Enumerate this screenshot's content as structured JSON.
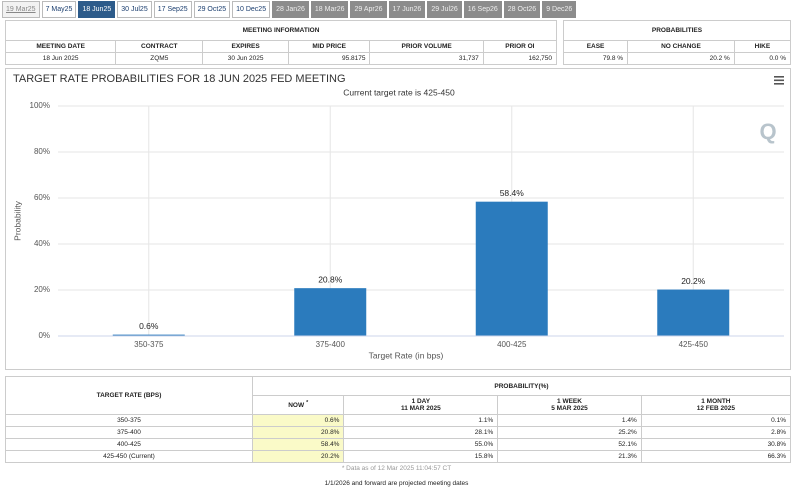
{
  "tabs": [
    "19 Mar25",
    "7 May25",
    "18 Jun25",
    "30 Jul25",
    "17 Sep25",
    "29 Oct25",
    "10 Dec25",
    "28 Jan26",
    "18 Mar26",
    "29 Apr26",
    "17 Jun26",
    "29 Jul26",
    "16 Sep26",
    "28 Oct26",
    "9 Dec26"
  ],
  "meeting_info": {
    "title": "MEETING INFORMATION",
    "headers": [
      "MEETING DATE",
      "CONTRACT",
      "EXPIRES",
      "MID PRICE",
      "PRIOR VOLUME",
      "PRIOR OI"
    ],
    "row": [
      "18 Jun 2025",
      "ZQM5",
      "30 Jun 2025",
      "95.8175",
      "31,737",
      "162,750"
    ]
  },
  "probabilities": {
    "title": "PROBABILITIES",
    "headers": [
      "EASE",
      "NO CHANGE",
      "HIKE"
    ],
    "row": [
      "79.8 %",
      "20.2 %",
      "0.0 %"
    ]
  },
  "chart_data": {
    "type": "bar",
    "title": "TARGET RATE PROBABILITIES FOR 18 JUN 2025 FED MEETING",
    "subtitle": "Current target rate is 425-450",
    "x_label": "Target Rate (in bps)",
    "y_label": "Probability",
    "categories": [
      "350-375",
      "375-400",
      "400-425",
      "425-450"
    ],
    "values": [
      0.6,
      20.8,
      58.4,
      20.2
    ],
    "value_labels": [
      "0.6%",
      "20.8%",
      "58.4%",
      "20.2%"
    ],
    "color": "#2b7bbd",
    "ylim": [
      0,
      100
    ],
    "yticks": [
      {
        "value": 0,
        "label": "0%"
      },
      {
        "value": 20,
        "label": "20%"
      },
      {
        "value": 40,
        "label": "40%"
      },
      {
        "value": 60,
        "label": "60%"
      },
      {
        "value": 80,
        "label": "80%"
      },
      {
        "value": 100,
        "label": "100%"
      }
    ],
    "grid": true
  },
  "rate_table": {
    "header": "TARGET RATE (BPS)",
    "group": "PROBABILITY(%)",
    "columns": [
      {
        "label": "NOW",
        "mark": "*"
      },
      {
        "label": "1 DAY",
        "date": "11 MAR 2025"
      },
      {
        "label": "1 WEEK",
        "date": "5 MAR 2025"
      },
      {
        "label": "1 MONTH",
        "date": "12 FEB 2025"
      }
    ],
    "rows": [
      [
        "350-375",
        "0.6%",
        "1.1%",
        "1.4%",
        "0.1%"
      ],
      [
        "375-400",
        "20.8%",
        "28.1%",
        "25.2%",
        "2.8%"
      ],
      [
        "400-425",
        "58.4%",
        "55.0%",
        "52.1%",
        "30.8%"
      ],
      [
        "425-450 (Current)",
        "20.2%",
        "15.8%",
        "21.3%",
        "66.3%"
      ]
    ]
  },
  "note": "* Data as of 12 Mar 2025 11:04:57 CT",
  "footer": "1/1/2026 and forward are projected meeting dates"
}
